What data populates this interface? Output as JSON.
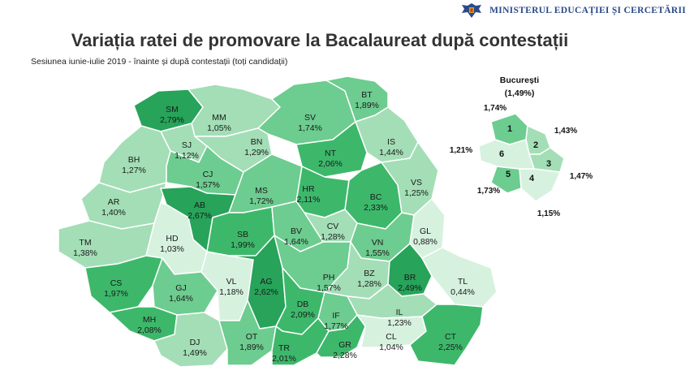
{
  "header": {
    "ministry": "MINISTERUL EDUCAȚIEI ȘI CERCETĂRII",
    "title": "Variația ratei de promovare la Bacalaureat după contestații",
    "subtitle": "Sesiunea iunie-iulie 2019 - înainte și după contestații (toți candidații)"
  },
  "colors": {
    "darkest": "#27a35a",
    "dark": "#3db86b",
    "medium": "#6dcc8f",
    "light": "#a3deb6",
    "lightest": "#d7f1df",
    "border": "#ffffff"
  },
  "counties": [
    {
      "code": "SM",
      "value": "2,79%",
      "level": "darkest"
    },
    {
      "code": "MM",
      "value": "1,05%",
      "level": "light"
    },
    {
      "code": "SV",
      "value": "1,74%",
      "level": "medium"
    },
    {
      "code": "BT",
      "value": "1,89%",
      "level": "medium"
    },
    {
      "code": "BH",
      "value": "1,27%",
      "level": "light"
    },
    {
      "code": "SJ",
      "value": "1,12%",
      "level": "light"
    },
    {
      "code": "BN",
      "value": "1,29%",
      "level": "light"
    },
    {
      "code": "IS",
      "value": "1,44%",
      "level": "light"
    },
    {
      "code": "NT",
      "value": "2,06%",
      "level": "dark"
    },
    {
      "code": "CJ",
      "value": "1,57%",
      "level": "medium"
    },
    {
      "code": "AR",
      "value": "1,40%",
      "level": "light"
    },
    {
      "code": "AB",
      "value": "2,67%",
      "level": "darkest"
    },
    {
      "code": "MS",
      "value": "1,72%",
      "level": "medium"
    },
    {
      "code": "HR",
      "value": "2,11%",
      "level": "dark"
    },
    {
      "code": "BC",
      "value": "2,33%",
      "level": "dark"
    },
    {
      "code": "VS",
      "value": "1,25%",
      "level": "light"
    },
    {
      "code": "TM",
      "value": "1,38%",
      "level": "light"
    },
    {
      "code": "HD",
      "value": "1,03%",
      "level": "lightest"
    },
    {
      "code": "SB",
      "value": "1,99%",
      "level": "dark"
    },
    {
      "code": "BV",
      "value": "1,64%",
      "level": "medium"
    },
    {
      "code": "CV",
      "value": "1,28%",
      "level": "light"
    },
    {
      "code": "VN",
      "value": "1,55%",
      "level": "medium"
    },
    {
      "code": "GL",
      "value": "0,88%",
      "level": "lightest"
    },
    {
      "code": "CS",
      "value": "1,97%",
      "level": "dark"
    },
    {
      "code": "GJ",
      "value": "1,64%",
      "level": "medium"
    },
    {
      "code": "VL",
      "value": "1,18%",
      "level": "lightest"
    },
    {
      "code": "AG",
      "value": "2,62%",
      "level": "darkest"
    },
    {
      "code": "PH",
      "value": "1,57%",
      "level": "medium"
    },
    {
      "code": "BZ",
      "value": "1,28%",
      "level": "light"
    },
    {
      "code": "BR",
      "value": "2,49%",
      "level": "darkest"
    },
    {
      "code": "TL",
      "value": "0,44%",
      "level": "lightest"
    },
    {
      "code": "MH",
      "value": "2,08%",
      "level": "dark"
    },
    {
      "code": "DB",
      "value": "2,09%",
      "level": "dark"
    },
    {
      "code": "IL",
      "value": "1,23%",
      "level": "light"
    },
    {
      "code": "IF",
      "value": "1,77%",
      "level": "medium"
    },
    {
      "code": "DJ",
      "value": "1,49%",
      "level": "light"
    },
    {
      "code": "OT",
      "value": "1,89%",
      "level": "medium"
    },
    {
      "code": "TR",
      "value": "2,01%",
      "level": "dark"
    },
    {
      "code": "GR",
      "value": "2,28%",
      "level": "dark"
    },
    {
      "code": "CL",
      "value": "1,04%",
      "level": "lightest"
    },
    {
      "code": "CT",
      "value": "2,25%",
      "level": "dark"
    }
  ],
  "bucuresti": {
    "title": "București",
    "total": "(1,49%)",
    "sectors": [
      {
        "number": "1",
        "value": "1,74%",
        "level": "medium"
      },
      {
        "number": "2",
        "value": "1,43%",
        "level": "light"
      },
      {
        "number": "3",
        "value": "1,47%",
        "level": "light"
      },
      {
        "number": "4",
        "value": "1,15%",
        "level": "lightest"
      },
      {
        "number": "5",
        "value": "1,73%",
        "level": "medium"
      },
      {
        "number": "6",
        "value": "1,21%",
        "level": "lightest"
      }
    ]
  }
}
